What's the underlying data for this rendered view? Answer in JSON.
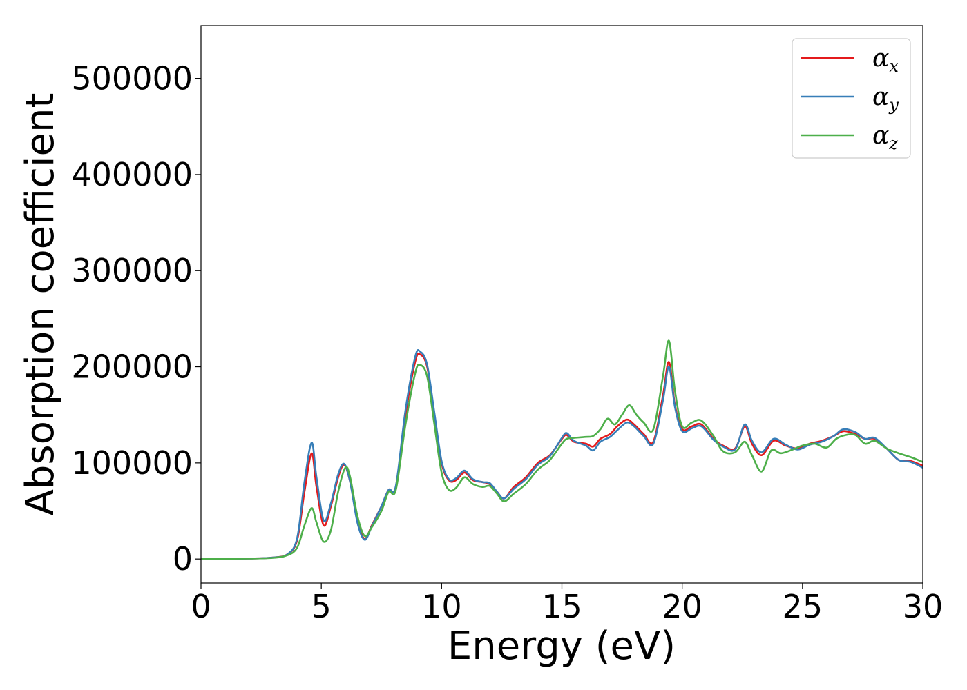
{
  "chart_data": {
    "type": "line",
    "xlabel": "Energy (eV)",
    "ylabel": "Absorption coefficient",
    "xlim": [
      0,
      30
    ],
    "ylim": [
      -25000,
      555000
    ],
    "xticks": [
      0,
      5,
      10,
      15,
      20,
      25,
      30
    ],
    "yticks": [
      0,
      100000,
      200000,
      300000,
      400000,
      500000
    ],
    "grid": false,
    "legend_position": "top-right",
    "series": [
      {
        "name": "α_x",
        "label_main": "α",
        "label_sub": "x",
        "color": "#e41a1c",
        "points": [
          [
            0,
            0
          ],
          [
            2,
            500
          ],
          [
            3,
            1500
          ],
          [
            3.6,
            5000
          ],
          [
            4,
            20000
          ],
          [
            4.3,
            70000
          ],
          [
            4.6,
            110000
          ],
          [
            4.8,
            75000
          ],
          [
            5.1,
            35000
          ],
          [
            5.4,
            55000
          ],
          [
            5.7,
            85000
          ],
          [
            5.95,
            98000
          ],
          [
            6.2,
            80000
          ],
          [
            6.5,
            40000
          ],
          [
            6.8,
            21000
          ],
          [
            7.1,
            35000
          ],
          [
            7.5,
            55000
          ],
          [
            7.8,
            72000
          ],
          [
            8.1,
            75000
          ],
          [
            8.5,
            150000
          ],
          [
            8.9,
            205000
          ],
          [
            9.1,
            213000
          ],
          [
            9.4,
            200000
          ],
          [
            9.7,
            150000
          ],
          [
            10.0,
            100000
          ],
          [
            10.3,
            82000
          ],
          [
            10.6,
            82000
          ],
          [
            10.95,
            90000
          ],
          [
            11.3,
            82000
          ],
          [
            11.7,
            80000
          ],
          [
            12.0,
            78000
          ],
          [
            12.3,
            70000
          ],
          [
            12.6,
            63000
          ],
          [
            13.0,
            75000
          ],
          [
            13.5,
            85000
          ],
          [
            14.0,
            100000
          ],
          [
            14.5,
            108000
          ],
          [
            15.0,
            125000
          ],
          [
            15.2,
            129000
          ],
          [
            15.5,
            122000
          ],
          [
            16.0,
            120000
          ],
          [
            16.3,
            117000
          ],
          [
            16.6,
            125000
          ],
          [
            17.0,
            130000
          ],
          [
            17.3,
            138000
          ],
          [
            17.7,
            145000
          ],
          [
            18.0,
            140000
          ],
          [
            18.4,
            130000
          ],
          [
            18.8,
            122000
          ],
          [
            19.2,
            170000
          ],
          [
            19.45,
            205000
          ],
          [
            19.7,
            160000
          ],
          [
            20.0,
            135000
          ],
          [
            20.4,
            138000
          ],
          [
            20.8,
            140000
          ],
          [
            21.3,
            125000
          ],
          [
            21.7,
            118000
          ],
          [
            22.2,
            115000
          ],
          [
            22.6,
            138000
          ],
          [
            22.9,
            120000
          ],
          [
            23.3,
            108000
          ],
          [
            23.8,
            123000
          ],
          [
            24.3,
            118000
          ],
          [
            24.8,
            115000
          ],
          [
            25.3,
            120000
          ],
          [
            25.8,
            123000
          ],
          [
            26.3,
            128000
          ],
          [
            26.7,
            133000
          ],
          [
            27.2,
            130000
          ],
          [
            27.6,
            125000
          ],
          [
            28.0,
            125000
          ],
          [
            28.5,
            115000
          ],
          [
            29.0,
            103000
          ],
          [
            29.5,
            102000
          ],
          [
            30,
            97000
          ]
        ]
      },
      {
        "name": "α_y",
        "label_main": "α",
        "label_sub": "y",
        "color": "#377eb8",
        "points": [
          [
            0,
            0
          ],
          [
            2,
            500
          ],
          [
            3,
            1500
          ],
          [
            3.6,
            5000
          ],
          [
            4,
            22000
          ],
          [
            4.3,
            80000
          ],
          [
            4.6,
            121000
          ],
          [
            4.8,
            85000
          ],
          [
            5.1,
            40000
          ],
          [
            5.4,
            58000
          ],
          [
            5.7,
            88000
          ],
          [
            5.95,
            99000
          ],
          [
            6.2,
            80000
          ],
          [
            6.5,
            38000
          ],
          [
            6.8,
            20000
          ],
          [
            7.1,
            34000
          ],
          [
            7.5,
            55000
          ],
          [
            7.8,
            72000
          ],
          [
            8.1,
            76000
          ],
          [
            8.5,
            155000
          ],
          [
            8.9,
            210000
          ],
          [
            9.1,
            216000
          ],
          [
            9.4,
            202000
          ],
          [
            9.7,
            152000
          ],
          [
            10.0,
            102000
          ],
          [
            10.3,
            83000
          ],
          [
            10.6,
            84000
          ],
          [
            10.95,
            92000
          ],
          [
            11.3,
            83000
          ],
          [
            11.7,
            80000
          ],
          [
            12.0,
            79000
          ],
          [
            12.3,
            70000
          ],
          [
            12.6,
            63000
          ],
          [
            13.0,
            73000
          ],
          [
            13.5,
            83000
          ],
          [
            14.0,
            98000
          ],
          [
            14.5,
            107000
          ],
          [
            15.0,
            126000
          ],
          [
            15.2,
            131000
          ],
          [
            15.5,
            123000
          ],
          [
            16.0,
            118000
          ],
          [
            16.3,
            113000
          ],
          [
            16.6,
            122000
          ],
          [
            17.0,
            127000
          ],
          [
            17.3,
            134000
          ],
          [
            17.7,
            142000
          ],
          [
            18.0,
            138000
          ],
          [
            18.4,
            128000
          ],
          [
            18.8,
            120000
          ],
          [
            19.2,
            165000
          ],
          [
            19.45,
            200000
          ],
          [
            19.7,
            158000
          ],
          [
            20.0,
            133000
          ],
          [
            20.4,
            136000
          ],
          [
            20.8,
            138000
          ],
          [
            21.3,
            124000
          ],
          [
            21.7,
            117000
          ],
          [
            22.2,
            114000
          ],
          [
            22.6,
            140000
          ],
          [
            22.9,
            123000
          ],
          [
            23.3,
            111000
          ],
          [
            23.8,
            125000
          ],
          [
            24.3,
            119000
          ],
          [
            24.8,
            114000
          ],
          [
            25.3,
            119000
          ],
          [
            25.8,
            122000
          ],
          [
            26.3,
            128000
          ],
          [
            26.7,
            135000
          ],
          [
            27.2,
            132000
          ],
          [
            27.6,
            125000
          ],
          [
            28.0,
            126000
          ],
          [
            28.5,
            115000
          ],
          [
            29.0,
            103000
          ],
          [
            29.5,
            101000
          ],
          [
            30,
            95000
          ]
        ]
      },
      {
        "name": "α_z",
        "label_main": "α",
        "label_sub": "z",
        "color": "#4daf4a",
        "points": [
          [
            0,
            0
          ],
          [
            2,
            500
          ],
          [
            3,
            1200
          ],
          [
            3.6,
            4000
          ],
          [
            4,
            12000
          ],
          [
            4.3,
            35000
          ],
          [
            4.6,
            53000
          ],
          [
            4.8,
            38000
          ],
          [
            5.1,
            18000
          ],
          [
            5.4,
            30000
          ],
          [
            5.7,
            70000
          ],
          [
            6.0,
            95000
          ],
          [
            6.2,
            85000
          ],
          [
            6.5,
            45000
          ],
          [
            6.8,
            24000
          ],
          [
            7.1,
            33000
          ],
          [
            7.5,
            50000
          ],
          [
            7.8,
            70000
          ],
          [
            8.1,
            72000
          ],
          [
            8.5,
            140000
          ],
          [
            8.9,
            193000
          ],
          [
            9.1,
            202000
          ],
          [
            9.4,
            190000
          ],
          [
            9.7,
            140000
          ],
          [
            10.0,
            90000
          ],
          [
            10.3,
            72000
          ],
          [
            10.6,
            74000
          ],
          [
            10.95,
            85000
          ],
          [
            11.3,
            78000
          ],
          [
            11.7,
            75000
          ],
          [
            12.0,
            76000
          ],
          [
            12.3,
            68000
          ],
          [
            12.6,
            60000
          ],
          [
            13.0,
            68000
          ],
          [
            13.5,
            78000
          ],
          [
            14.0,
            93000
          ],
          [
            14.5,
            103000
          ],
          [
            15.0,
            120000
          ],
          [
            15.2,
            125000
          ],
          [
            15.5,
            126000
          ],
          [
            16.0,
            127000
          ],
          [
            16.3,
            128000
          ],
          [
            16.6,
            135000
          ],
          [
            16.9,
            146000
          ],
          [
            17.2,
            140000
          ],
          [
            17.5,
            150000
          ],
          [
            17.8,
            160000
          ],
          [
            18.1,
            150000
          ],
          [
            18.4,
            142000
          ],
          [
            18.8,
            135000
          ],
          [
            19.2,
            190000
          ],
          [
            19.45,
            227000
          ],
          [
            19.7,
            175000
          ],
          [
            20.0,
            138000
          ],
          [
            20.4,
            142000
          ],
          [
            20.8,
            144000
          ],
          [
            21.3,
            128000
          ],
          [
            21.7,
            112000
          ],
          [
            22.2,
            111000
          ],
          [
            22.6,
            122000
          ],
          [
            22.9,
            108000
          ],
          [
            23.3,
            91000
          ],
          [
            23.7,
            113000
          ],
          [
            24.1,
            110000
          ],
          [
            24.6,
            114000
          ],
          [
            25.0,
            118000
          ],
          [
            25.5,
            120000
          ],
          [
            26.0,
            116000
          ],
          [
            26.4,
            125000
          ],
          [
            26.8,
            129000
          ],
          [
            27.2,
            129000
          ],
          [
            27.6,
            120000
          ],
          [
            28.0,
            123000
          ],
          [
            28.5,
            115000
          ],
          [
            29.0,
            110000
          ],
          [
            29.5,
            106000
          ],
          [
            30,
            101000
          ]
        ]
      }
    ]
  }
}
